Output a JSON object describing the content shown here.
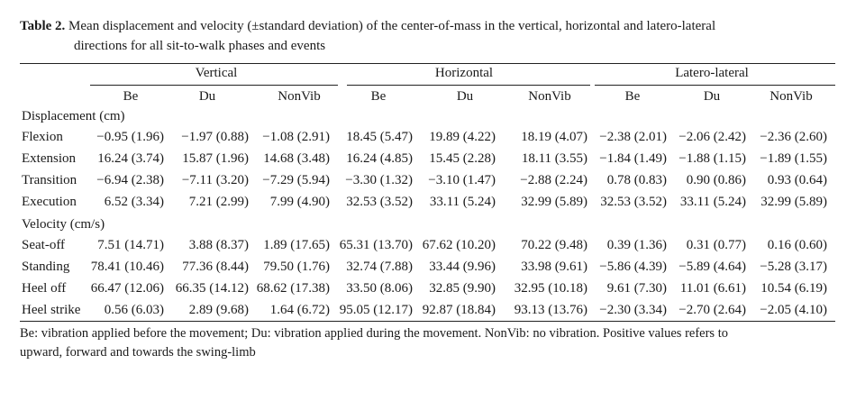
{
  "caption": {
    "label": "Table 2.",
    "text_line1": "Mean displacement and velocity (±standard deviation) of the center-of-mass in the vertical, horizontal and latero-lateral",
    "text_line2": "directions for all sit-to-walk phases and events"
  },
  "groups": [
    "Vertical",
    "Horizontal",
    "Latero-lateral"
  ],
  "columns": [
    "Be",
    "Du",
    "NonVib",
    "Be",
    "Du",
    "NonVib",
    "Be",
    "Du",
    "NonVib"
  ],
  "sections": [
    {
      "title": "Displacement (cm)",
      "rows": [
        {
          "label": "Flexion",
          "cells": [
            "−0.95 (1.96)",
            "−1.97 (0.88)",
            "−1.08 (2.91)",
            "18.45 (5.47)",
            "19.89 (4.22)",
            "18.19 (4.07)",
            "−2.38 (2.01)",
            "−2.06 (2.42)",
            "−2.36 (2.60)"
          ]
        },
        {
          "label": "Extension",
          "cells": [
            "16.24 (3.74)",
            "15.87 (1.96)",
            "14.68 (3.48)",
            "16.24 (4.85)",
            "15.45 (2.28)",
            "18.11 (3.55)",
            "−1.84 (1.49)",
            "−1.88 (1.15)",
            "−1.89 (1.55)"
          ]
        },
        {
          "label": "Transition",
          "cells": [
            "−6.94 (2.38)",
            "−7.11 (3.20)",
            "−7.29 (5.94)",
            "−3.30 (1.32)",
            "−3.10 (1.47)",
            "−2.88 (2.24)",
            "0.78 (0.83)",
            "0.90 (0.86)",
            "0.93 (0.64)"
          ]
        },
        {
          "label": "Execution",
          "cells": [
            "6.52 (3.34)",
            "7.21 (2.99)",
            "7.99 (4.90)",
            "32.53 (3.52)",
            "33.11 (5.24)",
            "32.99 (5.89)",
            "32.53 (3.52)",
            "33.11 (5.24)",
            "32.99 (5.89)"
          ]
        }
      ]
    },
    {
      "title": "Velocity (cm/s)",
      "rows": [
        {
          "label": "Seat-off",
          "cells": [
            "7.51 (14.71)",
            "3.88 (8.37)",
            "1.89 (17.65)",
            "65.31 (13.70)",
            "67.62 (10.20)",
            "70.22 (9.48)",
            "0.39 (1.36)",
            "0.31 (0.77)",
            "0.16 (0.60)"
          ]
        },
        {
          "label": "Standing",
          "cells": [
            "78.41 (10.46)",
            "77.36 (8.44)",
            "79.50 (1.76)",
            "32.74 (7.88)",
            "33.44 (9.96)",
            "33.98 (9.61)",
            "−5.86 (4.39)",
            "−5.89 (4.64)",
            "−5.28 (3.17)"
          ]
        },
        {
          "label": "Heel off",
          "cells": [
            "66.47 (12.06)",
            "66.35 (14.12)",
            "68.62 (17.38)",
            "33.50 (8.06)",
            "32.85 (9.90)",
            "32.95 (10.18)",
            "9.61 (7.30)",
            "11.01 (6.61)",
            "10.54 (6.19)"
          ]
        },
        {
          "label": "Heel strike",
          "cells": [
            "0.56 (6.03)",
            "2.89 (9.68)",
            "1.64 (6.72)",
            "95.05 (12.17)",
            "92.87 (18.84)",
            "93.13 (13.76)",
            "−2.30 (3.34)",
            "−2.70 (2.64)",
            "−2.05 (4.10)"
          ]
        }
      ]
    }
  ],
  "footnote": {
    "line1": "Be: vibration applied before the movement; Du: vibration applied during the movement. NonVib: no vibration. Positive values refers to",
    "line2": "upward, forward and towards the swing-limb"
  }
}
